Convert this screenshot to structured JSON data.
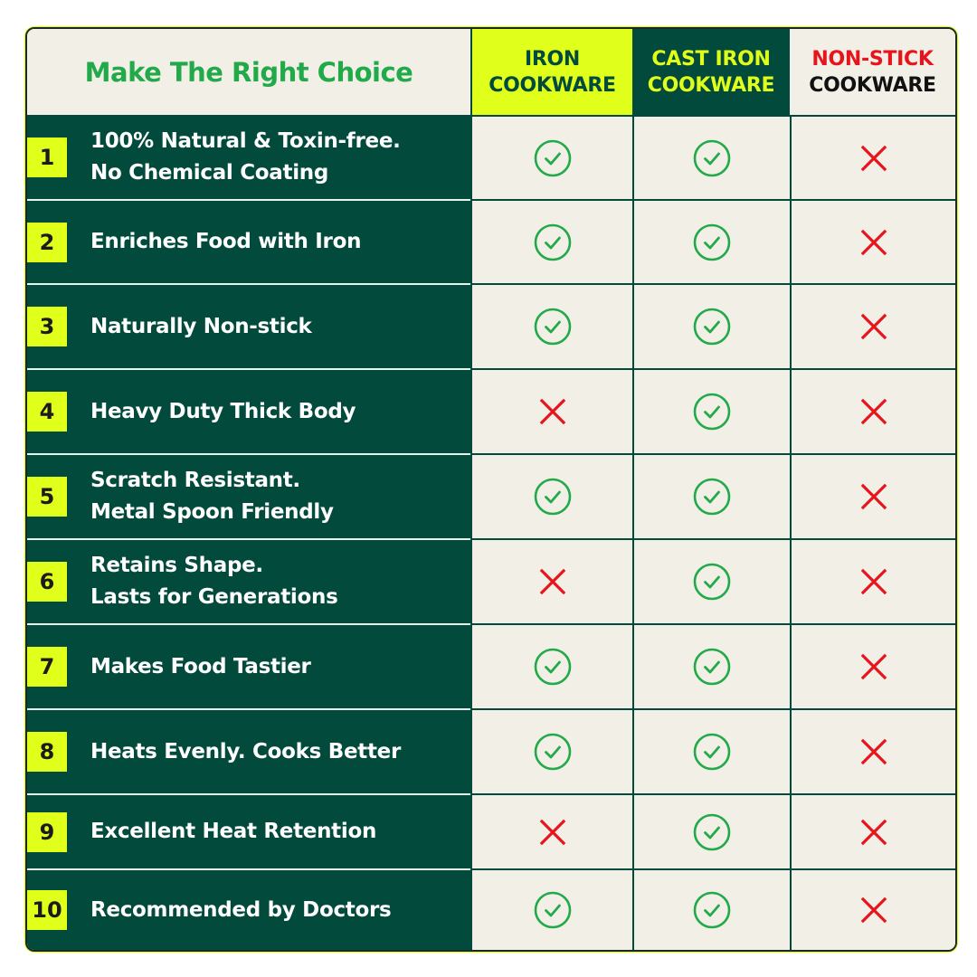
{
  "title": "Make The Right Choice",
  "columns": [
    {
      "line1": "IRON",
      "line2": "COOKWARE"
    },
    {
      "line1": "CAST IRON",
      "line2": "COOKWARE"
    },
    {
      "line1": "NON-STICK",
      "line2": "COOKWARE"
    }
  ],
  "colors": {
    "dark_green": "#024a3c",
    "lime": "#e0ff1a",
    "cream": "#f1efe6",
    "check_green": "#22a94a",
    "cross_red": "#e8141b"
  },
  "rows": [
    {
      "num": "1",
      "lines": [
        "100% Natural & Toxin-free.",
        "No Chemical Coating"
      ],
      "values": [
        "check",
        "check",
        "cross"
      ]
    },
    {
      "num": "2",
      "lines": [
        "Enriches Food with Iron"
      ],
      "values": [
        "check",
        "check",
        "cross"
      ]
    },
    {
      "num": "3",
      "lines": [
        "Naturally Non-stick"
      ],
      "values": [
        "check",
        "check",
        "cross"
      ]
    },
    {
      "num": "4",
      "lines": [
        "Heavy Duty Thick Body"
      ],
      "values": [
        "cross",
        "check",
        "cross"
      ]
    },
    {
      "num": "5",
      "lines": [
        "Scratch Resistant.",
        "Metal Spoon Friendly"
      ],
      "values": [
        "check",
        "check",
        "cross"
      ]
    },
    {
      "num": "6",
      "lines": [
        "Retains Shape.",
        "Lasts for Generations"
      ],
      "values": [
        "cross",
        "check",
        "cross"
      ]
    },
    {
      "num": "7",
      "lines": [
        "Makes Food Tastier"
      ],
      "values": [
        "check",
        "check",
        "cross"
      ]
    },
    {
      "num": "8",
      "lines": [
        "Heats Evenly. Cooks Better"
      ],
      "values": [
        "check",
        "check",
        "cross"
      ]
    },
    {
      "num": "9",
      "lines": [
        "Excellent Heat Retention"
      ],
      "values": [
        "cross",
        "check",
        "cross"
      ]
    },
    {
      "num": "10",
      "lines": [
        "Recommended by Doctors"
      ],
      "values": [
        "check",
        "check",
        "cross"
      ]
    }
  ]
}
